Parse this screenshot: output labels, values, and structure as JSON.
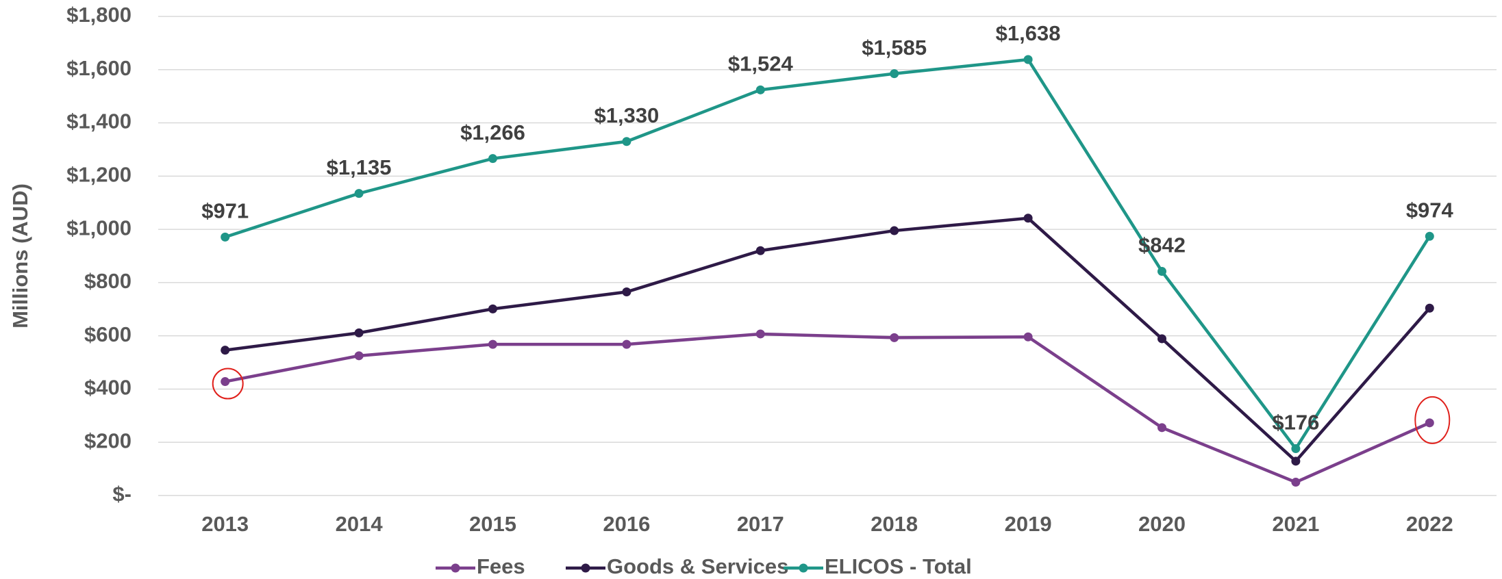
{
  "chart_data": {
    "type": "line",
    "y_label": "Millions (AUD)",
    "categories": [
      "2013",
      "2014",
      "2015",
      "2016",
      "2017",
      "2018",
      "2019",
      "2020",
      "2021",
      "2022"
    ],
    "series": [
      {
        "name": "Fees",
        "color": "#7b3f8c",
        "values": [
          428,
          525,
          568,
          568,
          607,
          593,
          596,
          255,
          50,
          273
        ]
      },
      {
        "name": "Goods & Services",
        "color": "#2e1a47",
        "values": [
          546,
          611,
          701,
          765,
          920,
          995,
          1042,
          589,
          129,
          704
        ]
      },
      {
        "name": "ELICOS - Total",
        "color": "#1f9688",
        "values": [
          971,
          1135,
          1266,
          1330,
          1524,
          1585,
          1638,
          842,
          176,
          974
        ],
        "value_labels": [
          "$971",
          "$1,135",
          "$1,266",
          "$1,330",
          "$1,524",
          "$1,585",
          "$1,638",
          "$842",
          "$176",
          "$974"
        ]
      }
    ],
    "ylim": [
      0,
      1800
    ],
    "yticks": [
      {
        "value": 0,
        "label": "$-"
      },
      {
        "value": 200,
        "label": "$200"
      },
      {
        "value": 400,
        "label": "$400"
      },
      {
        "value": 600,
        "label": "$600"
      },
      {
        "value": 800,
        "label": "$800"
      },
      {
        "value": 1000,
        "label": "$1,000"
      },
      {
        "value": 1200,
        "label": "$1,200"
      },
      {
        "value": 1400,
        "label": "$1,400"
      },
      {
        "value": 1600,
        "label": "$1,600"
      },
      {
        "value": 1800,
        "label": "$1,800"
      }
    ],
    "grid": true,
    "legend": "bottom"
  }
}
